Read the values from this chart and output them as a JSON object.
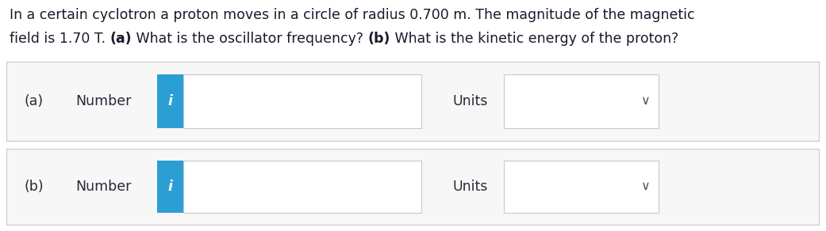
{
  "bg_color": "#ffffff",
  "white": "#ffffff",
  "blue_btn": "#2b9fd4",
  "border_color": "#c8c8c8",
  "text_color": "#1a1a2e",
  "row_bg": "#f7f7f7",
  "row_border": "#d0d0d0",
  "font_size_title": 12.5,
  "font_size_body": 12.5,
  "line1": "In a certain cyclotron a proton moves in a circle of radius 0.700 m. The magnitude of the magnetic",
  "line2_parts": [
    [
      "field is 1.70 T. ",
      false
    ],
    [
      "(a)",
      true
    ],
    [
      " What is the oscillator frequency? ",
      false
    ],
    [
      "(b)",
      true
    ],
    [
      " What is the kinetic energy of the proton?",
      false
    ]
  ],
  "rows": [
    {
      "label": "(a)",
      "number_text": "Number",
      "units_text": "Units"
    },
    {
      "label": "(b)",
      "number_text": "Number",
      "units_text": "Units"
    }
  ]
}
